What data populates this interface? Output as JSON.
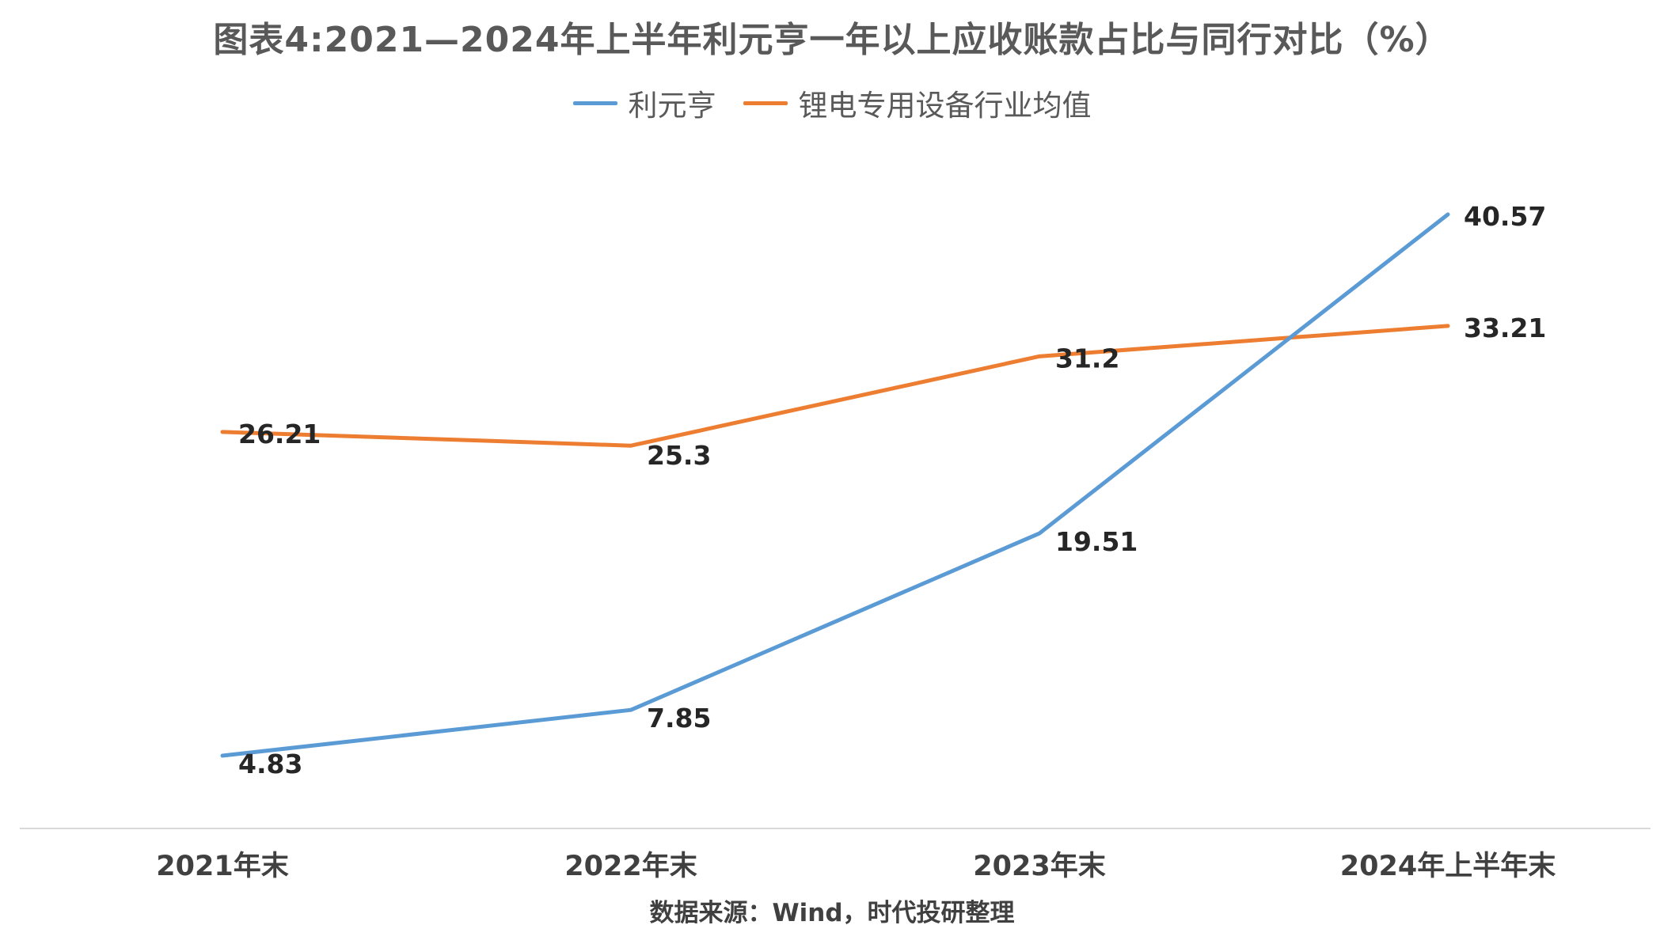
{
  "chart_data": {
    "type": "line",
    "title": "图表4:2021—2024年上半年利元亨一年以上应收账款占比与同行对比（%）",
    "categories": [
      "2021年末",
      "2022年末",
      "2023年末",
      "2024年上半年末"
    ],
    "series": [
      {
        "name": "利元亨",
        "values": [
          4.83,
          7.85,
          19.51,
          40.57
        ],
        "color": "#5B9BD5"
      },
      {
        "name": "锂电专用设备行业均值",
        "values": [
          26.21,
          25.3,
          31.2,
          33.21
        ],
        "color": "#ED7D31"
      }
    ],
    "value_labels": [
      [
        "4.83",
        "7.85",
        "19.51",
        "40.57"
      ],
      [
        "26.21",
        "25.3",
        "31.2",
        "33.21"
      ]
    ],
    "xlabel": "",
    "ylabel": "",
    "ylim": [
      0,
      45
    ],
    "grid": false,
    "y_axis_visible": false,
    "legend_position": "top-center",
    "source": "数据来源：Wind，时代投研整理"
  }
}
